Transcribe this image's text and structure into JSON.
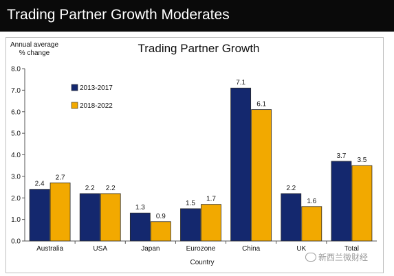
{
  "banner": {
    "title": "Trading Partner Growth Moderates"
  },
  "chart_data": {
    "type": "bar",
    "title": "Trading Partner Growth",
    "ylabel_line1": "Annual average",
    "ylabel_line2": "% change",
    "xlabel": "Country",
    "ylim": [
      0,
      8
    ],
    "yticks": [
      0,
      1,
      2,
      3,
      4,
      5,
      6,
      7,
      8
    ],
    "ytick_labels": [
      "0.0",
      "1.0",
      "2.0",
      "3.0",
      "4.0",
      "5.0",
      "6.0",
      "7.0",
      "8.0"
    ],
    "categories": [
      "Australia",
      "USA",
      "Japan",
      "Eurozone",
      "China",
      "UK",
      "Total"
    ],
    "series": [
      {
        "name": "2013-2017",
        "color": "#14286e",
        "values": [
          2.4,
          2.2,
          1.3,
          1.5,
          7.1,
          2.2,
          3.7
        ],
        "labels": [
          "2.4",
          "2.2",
          "1.3",
          "1.5",
          "7.1",
          "2.2",
          "3.7"
        ]
      },
      {
        "name": "2018-2022",
        "color": "#f2a900",
        "values": [
          2.7,
          2.2,
          0.9,
          1.7,
          6.1,
          1.6,
          3.5
        ],
        "labels": [
          "2.7",
          "2.2",
          "0.9",
          "1.7",
          "6.1",
          "1.6",
          "3.5"
        ]
      }
    ],
    "grid": false,
    "legend_position": "top-left"
  },
  "watermark": {
    "text": "新西兰微财经"
  }
}
